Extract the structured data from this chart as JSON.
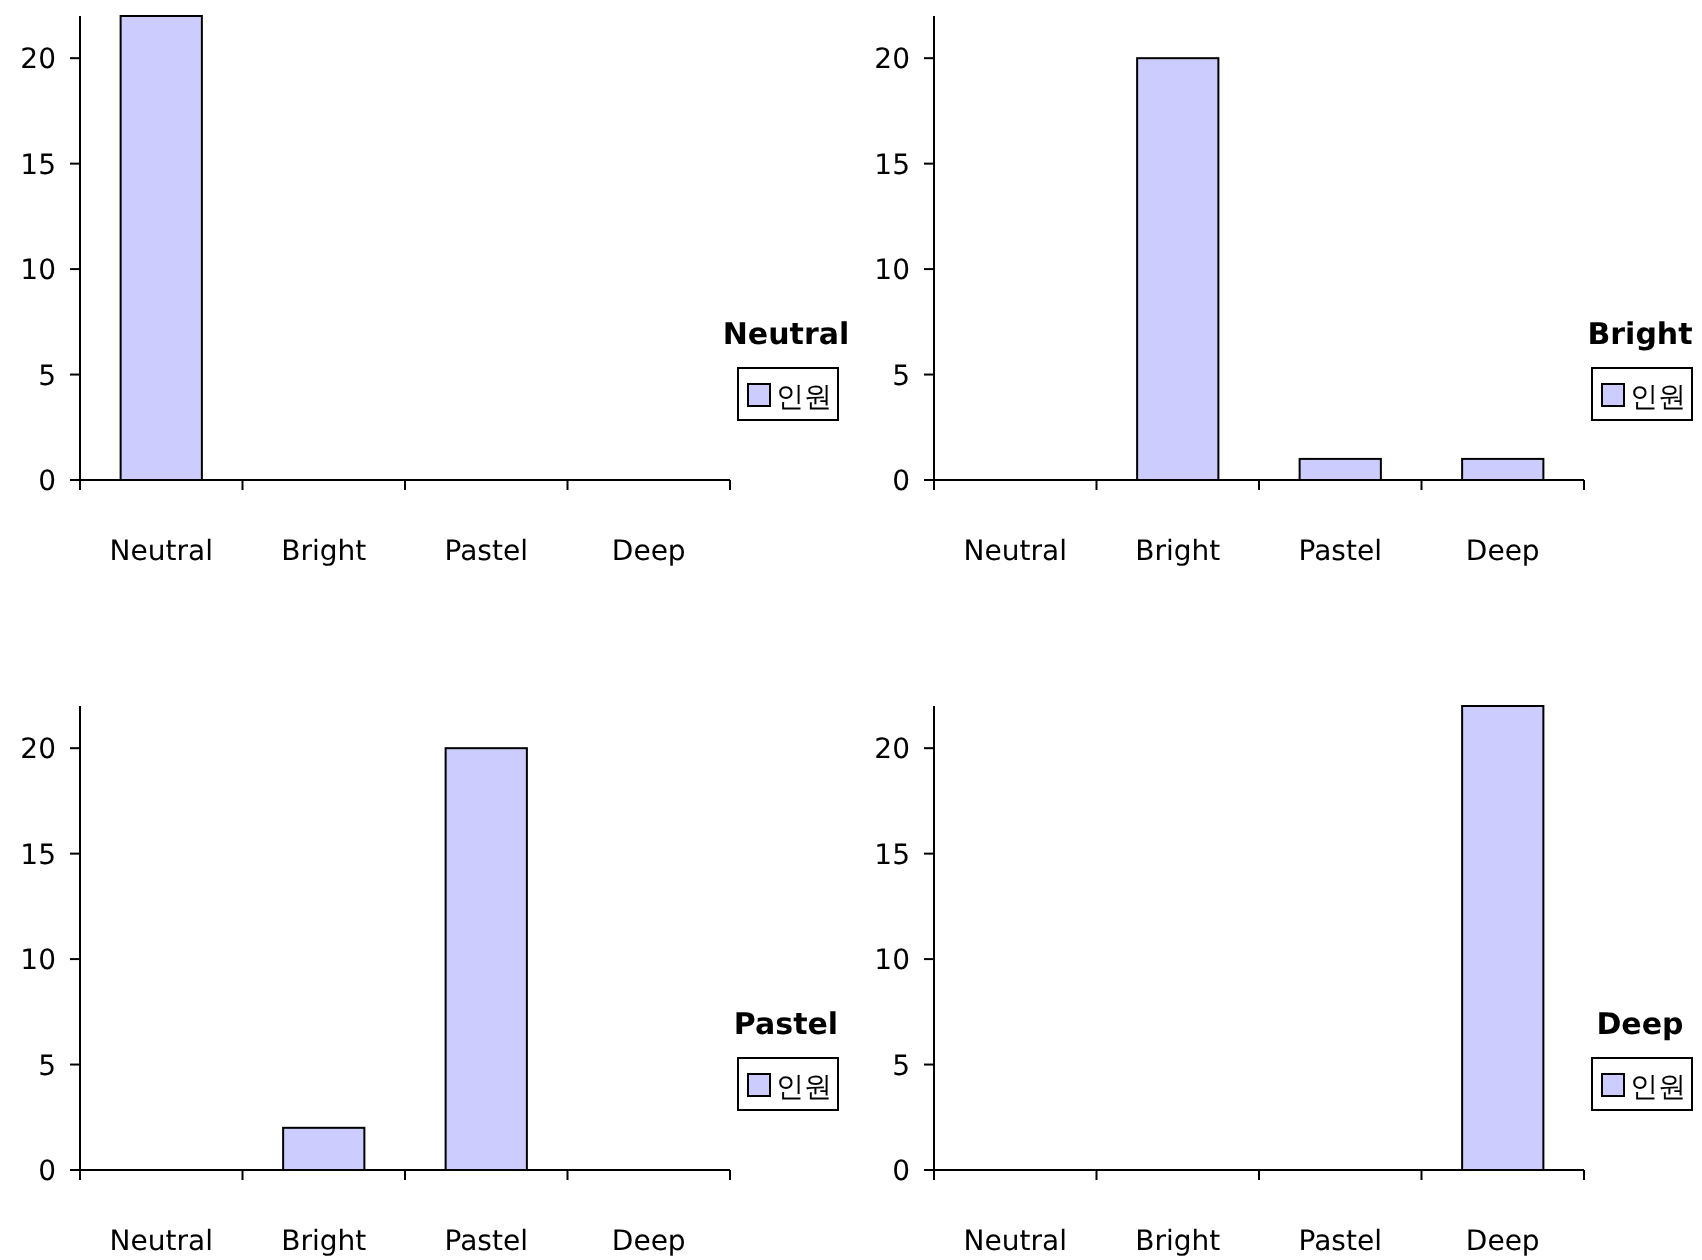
{
  "chart_data": [
    {
      "type": "bar",
      "title": "Neutral",
      "categories": [
        "Neutral",
        "Bright",
        "Pastel",
        "Deep"
      ],
      "series": [
        {
          "name": "인원",
          "color": "#ccccff",
          "values": [
            22,
            0,
            0,
            0
          ]
        }
      ],
      "ylim": [
        0,
        22
      ],
      "yticks": [
        0,
        5,
        10,
        15,
        20
      ],
      "legend": "right",
      "grid": false
    },
    {
      "type": "bar",
      "title": "Bright",
      "categories": [
        "Neutral",
        "Bright",
        "Pastel",
        "Deep"
      ],
      "series": [
        {
          "name": "인원",
          "color": "#ccccff",
          "values": [
            0,
            20,
            1,
            1
          ]
        }
      ],
      "ylim": [
        0,
        22
      ],
      "yticks": [
        0,
        5,
        10,
        15,
        20
      ],
      "legend": "right",
      "grid": false
    },
    {
      "type": "bar",
      "title": "Pastel",
      "categories": [
        "Neutral",
        "Bright",
        "Pastel",
        "Deep"
      ],
      "series": [
        {
          "name": "인원",
          "color": "#ccccff",
          "values": [
            0,
            2,
            20,
            0
          ]
        }
      ],
      "ylim": [
        0,
        22
      ],
      "yticks": [
        0,
        5,
        10,
        15,
        20
      ],
      "legend": "right",
      "grid": false
    },
    {
      "type": "bar",
      "title": "Deep",
      "categories": [
        "Neutral",
        "Bright",
        "Pastel",
        "Deep"
      ],
      "series": [
        {
          "name": "인원",
          "color": "#ccccff",
          "values": [
            0,
            0,
            0,
            22
          ]
        }
      ],
      "ylim": [
        0,
        22
      ],
      "yticks": [
        0,
        5,
        10,
        15,
        20
      ],
      "legend": "right",
      "grid": false
    }
  ]
}
